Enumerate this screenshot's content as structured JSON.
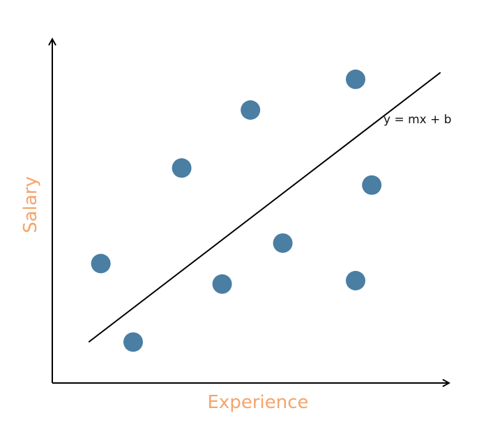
{
  "chart_data": {
    "type": "scatter",
    "xlabel": "Experience",
    "ylabel": "Salary",
    "annotation": "y = mx + b",
    "grid": false,
    "point_color": "#4a7ea3",
    "label_color": "#f5a46b",
    "xlim": [
      0,
      10
    ],
    "ylim": [
      0,
      10
    ],
    "points": [
      {
        "x": 1.2,
        "y": 3.5
      },
      {
        "x": 2.0,
        "y": 1.2
      },
      {
        "x": 3.2,
        "y": 6.3
      },
      {
        "x": 4.2,
        "y": 2.9
      },
      {
        "x": 4.9,
        "y": 8.0
      },
      {
        "x": 5.7,
        "y": 4.1
      },
      {
        "x": 7.5,
        "y": 3.0
      },
      {
        "x": 7.5,
        "y": 8.9
      },
      {
        "x": 7.9,
        "y": 5.8
      }
    ],
    "regression_line": {
      "x": [
        0.9,
        9.6
      ],
      "y": [
        1.2,
        9.1
      ]
    }
  }
}
